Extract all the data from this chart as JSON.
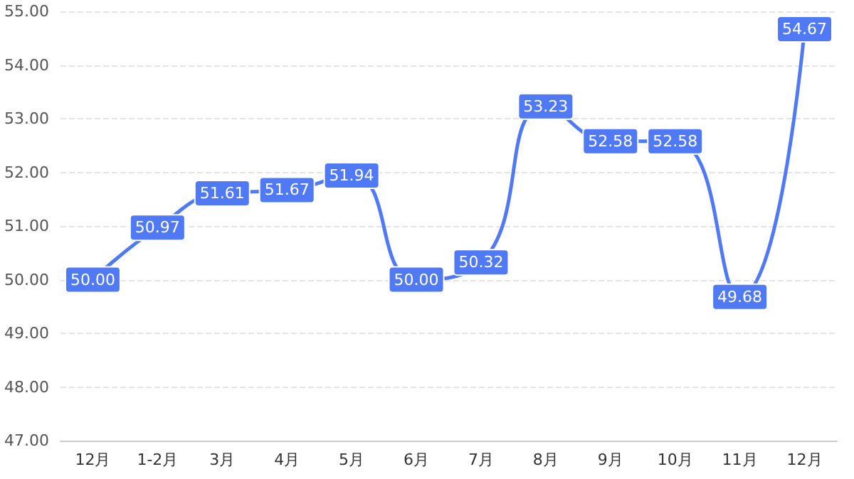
{
  "chart_data": {
    "type": "line",
    "categories": [
      "12月",
      "1-2月",
      "3月",
      "4月",
      "5月",
      "6月",
      "7月",
      "8月",
      "9月",
      "10月",
      "11月",
      "12月"
    ],
    "series": [
      {
        "color": "#5079f5",
        "values": [
          50.0,
          50.97,
          51.61,
          51.67,
          51.94,
          50.0,
          50.32,
          53.23,
          52.58,
          52.58,
          49.68,
          54.67
        ],
        "value_labels": [
          "50.00",
          "50.97",
          "51.61",
          "51.67",
          "51.94",
          "50.00",
          "50.32",
          "53.23",
          "52.58",
          "52.58",
          "49.68",
          "54.67"
        ]
      }
    ],
    "ylim": [
      47,
      55
    ],
    "yticks": [
      {
        "value": 47,
        "label": "47.00"
      },
      {
        "value": 48,
        "label": "48.00"
      },
      {
        "value": 49,
        "label": "49.00"
      },
      {
        "value": 50,
        "label": "50.00"
      },
      {
        "value": 51,
        "label": "51.00"
      },
      {
        "value": 52,
        "label": "52.00"
      },
      {
        "value": 53,
        "label": "53.00"
      },
      {
        "value": 54,
        "label": "54.00"
      },
      {
        "value": 55,
        "label": "55.00"
      }
    ],
    "grid": "y",
    "marker": "square",
    "line_style": "solid"
  }
}
